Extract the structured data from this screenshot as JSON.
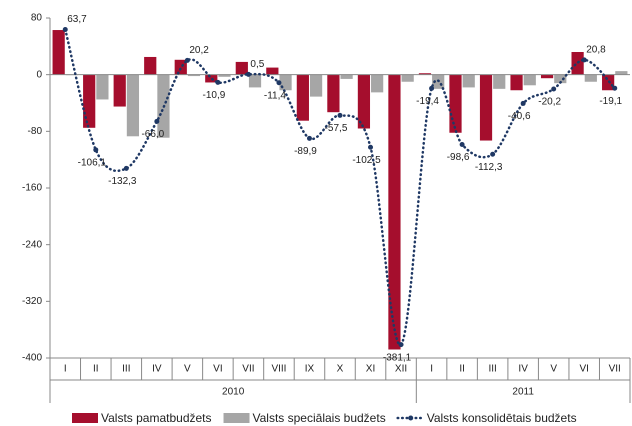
{
  "chart_data": {
    "type": "bar-line",
    "categories": [
      "I",
      "II",
      "III",
      "IV",
      "V",
      "VI",
      "VII",
      "VIII",
      "IX",
      "X",
      "XI",
      "XII",
      "I",
      "II",
      "III",
      "IV",
      "V",
      "VI",
      "VII"
    ],
    "years": [
      "2010",
      "2011"
    ],
    "ylim": [
      -400,
      80
    ],
    "yticks": [
      80,
      0,
      -80,
      -160,
      -240,
      -320,
      -400
    ],
    "series": [
      {
        "name": "Valsts pamatbudžets",
        "type": "bar",
        "color": "#a50e2d",
        "values": [
          63,
          -75,
          -45,
          25,
          21,
          -11,
          18,
          10,
          -65,
          -53,
          -76,
          -388,
          2,
          -82,
          -93,
          -22,
          -5,
          32,
          -22
        ]
      },
      {
        "name": "Valsts speciālais budžets",
        "type": "bar",
        "color": "#a6a6a6",
        "values": [
          0,
          -35,
          -87,
          -89,
          -2,
          -3,
          -18,
          -22,
          -31,
          -6,
          -25,
          -10,
          -20,
          -18,
          -20,
          -15,
          -12,
          -10,
          5
        ]
      },
      {
        "name": "Valsts konsolidētais budžets",
        "type": "line",
        "color": "#1f3864",
        "values": [
          63.7,
          -106.1,
          -132.3,
          -66.0,
          20.2,
          -10.9,
          0.5,
          -11.4,
          -89.9,
          -57.5,
          -102.5,
          -381.1,
          -19.4,
          -98.6,
          -112.3,
          -40.6,
          -20.2,
          20.8,
          -19.1
        ],
        "value_labels": [
          "63,7",
          "-106,1",
          "-132,3",
          "-66,0",
          "20,2",
          "-10,9",
          "0,5",
          "-11,4",
          "-89,9",
          "-57,5",
          "-102,5",
          "-381,1",
          "-19,4",
          "-98,6",
          "-112,3",
          "-40,6",
          "-20,2",
          "20,8",
          "-19,1"
        ]
      }
    ]
  }
}
